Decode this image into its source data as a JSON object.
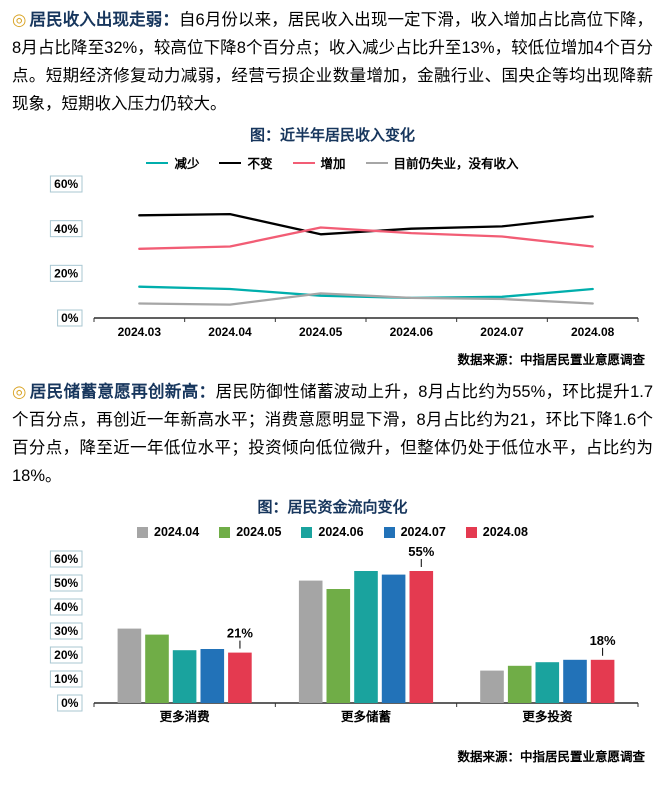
{
  "sections": [
    {
      "bullet": "◎",
      "heading": "居民收入出现走弱：",
      "body": "自6月份以来，居民收入出现一定下滑，收入增加占比高位下降，8月占比降至32%，较高位下降8个百分点；收入减少占比升至13%，较低位增加4个百分点。短期经济修复动力减弱，经营亏损企业数量增加，金融行业、国央企等均出现降薪现象，短期收入压力仍较大。"
    },
    {
      "bullet": "◎",
      "heading": "居民储蓄意愿再创新高：",
      "body": "居民防御性储蓄波动上升，8月占比约为55%，环比提升1.7个百分点，再创近一年新高水平；消费意愿明显下滑，8月占比约为21，环比下降1.6个百分点，降至近一年低位水平；投资倾向低位微升，但整体仍处于低位水平，占比约为18%。"
    }
  ],
  "colors": {
    "heading_navy": "#17365D",
    "bullet_gold": "#D9A427",
    "axis_box_border": "#A9C7D2"
  },
  "chart_data": [
    {
      "type": "line",
      "title": "图：近半年居民收入变化",
      "source": "数据来源：中指居民置业意愿调查",
      "x": [
        "2024.03",
        "2024.04",
        "2024.05",
        "2024.06",
        "2024.07",
        "2024.08"
      ],
      "series": [
        {
          "name": "减少",
          "color": "#00AEAC",
          "values": [
            14,
            13,
            10,
            9,
            9.5,
            13
          ]
        },
        {
          "name": "不变",
          "color": "#000000",
          "values": [
            46,
            46.5,
            37.5,
            40,
            41,
            45.5
          ]
        },
        {
          "name": "增加",
          "color": "#F25D75",
          "values": [
            31,
            32,
            40.5,
            38,
            36.5,
            32
          ]
        },
        {
          "name": "目前仍失业，没有收入",
          "color": "#A6A6A6",
          "values": [
            6.5,
            6,
            11,
            9,
            8.5,
            6.5
          ]
        }
      ],
      "ylim": [
        0,
        60
      ],
      "yticks": [
        "0%",
        "20%",
        "40%",
        "60%"
      ],
      "legend_position": "top",
      "grid": false
    },
    {
      "type": "bar",
      "title": "图：居民资金流向变化",
      "source": "数据来源：中指居民置业意愿调查",
      "categories": [
        "更多消费",
        "更多储蓄",
        "更多投资"
      ],
      "series": [
        {
          "name": "2024.04",
          "color": "#A5A5A5",
          "values": [
            31,
            51,
            13.5
          ]
        },
        {
          "name": "2024.05",
          "color": "#70AD47",
          "values": [
            28.5,
            47.5,
            15.5
          ]
        },
        {
          "name": "2024.06",
          "color": "#1AA39E",
          "values": [
            22,
            55,
            17
          ]
        },
        {
          "name": "2024.07",
          "color": "#2272B8",
          "values": [
            22.5,
            53.5,
            18
          ]
        },
        {
          "name": "2024.08",
          "color": "#E43A50",
          "values": [
            21,
            55,
            18
          ]
        }
      ],
      "annotations": [
        {
          "category_index": 0,
          "series_index": 4,
          "label": "21%"
        },
        {
          "category_index": 1,
          "series_index": 4,
          "label": "55%"
        },
        {
          "category_index": 2,
          "series_index": 4,
          "label": "18%"
        }
      ],
      "ylim": [
        0,
        60
      ],
      "yticks": [
        "0%",
        "10%",
        "20%",
        "30%",
        "40%",
        "50%",
        "60%"
      ],
      "legend_position": "top",
      "grid": false
    }
  ]
}
